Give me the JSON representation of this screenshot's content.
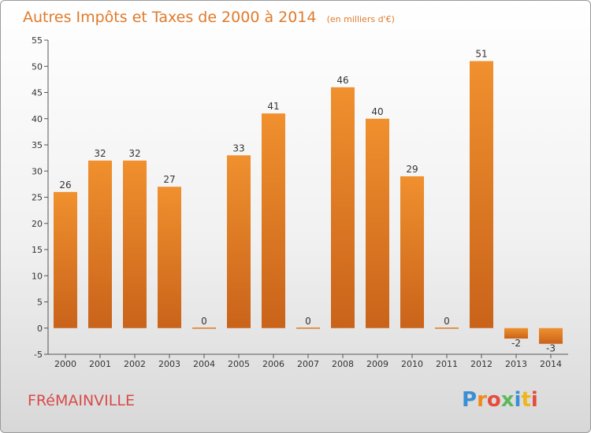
{
  "chart_data": {
    "type": "bar",
    "title": "Autres Impôts et Taxes de 2000 à 2014",
    "subtitle": "(en milliers d'€)",
    "categories": [
      "2000",
      "2001",
      "2002",
      "2003",
      "2004",
      "2005",
      "2006",
      "2007",
      "2008",
      "2009",
      "2010",
      "2011",
      "2012",
      "2013",
      "2014"
    ],
    "values": [
      26,
      32,
      32,
      27,
      0,
      33,
      41,
      0,
      46,
      40,
      29,
      0,
      51,
      -2,
      -3
    ],
    "yticks": [
      -5,
      0,
      5,
      10,
      15,
      20,
      25,
      30,
      35,
      40,
      45,
      50,
      55
    ],
    "ylim": [
      -5,
      55
    ],
    "grid": false,
    "legend": "none",
    "bar_color": "#f0902e",
    "bar_color_dark": "#c9631a"
  },
  "commune": "FRéMAINVILLE",
  "logo": {
    "letters": [
      "P",
      "r",
      "o",
      "x",
      "i",
      "t",
      "i"
    ],
    "colors": [
      "#3a8fd4",
      "#f08a1c",
      "#e54c3c",
      "#5cb85c",
      "#3a8fd4",
      "#f0b41c",
      "#e54c3c"
    ]
  }
}
